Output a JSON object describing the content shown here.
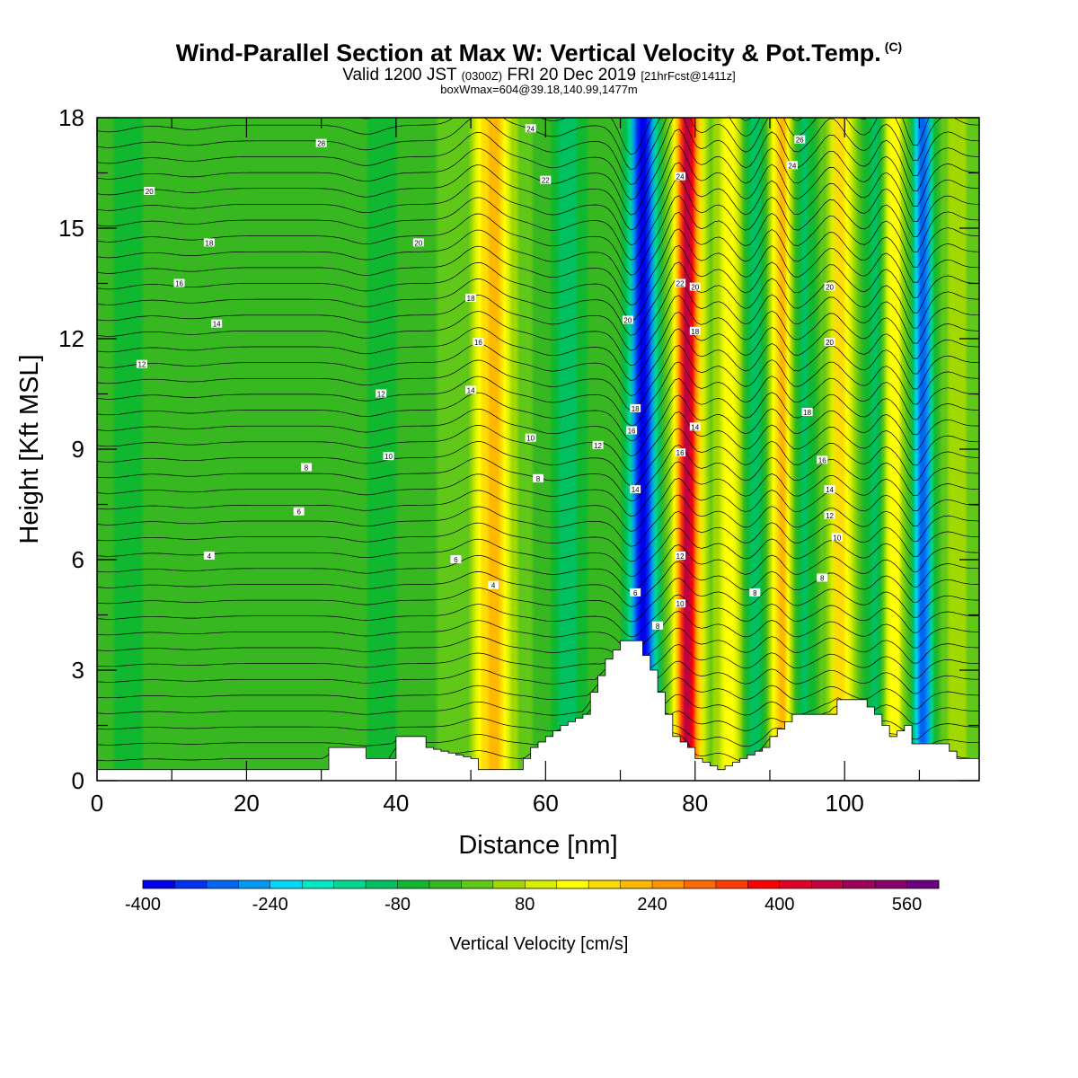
{
  "header": {
    "title": "Wind-Parallel Section at Max W: Vertical Velocity & Pot.Temp.",
    "copyright": "(C)",
    "valid_prefix": "Valid 1200 JST",
    "valid_utc": "(0300Z)",
    "valid_date": "FRI 20 Dec 2019",
    "forecast": "[21hrFcst@1411z]",
    "box_info": "boxWmax=604@39.18,140.99,1477m"
  },
  "chart_data": {
    "type": "heatmap",
    "xlabel": "Distance [nm]",
    "ylabel": "Height [Kft MSL]",
    "xlim": [
      0,
      118
    ],
    "ylim": [
      0,
      18
    ],
    "xticks": [
      "0",
      "20",
      "40",
      "60",
      "80",
      "100"
    ],
    "yticks": [
      "0",
      "3",
      "6",
      "9",
      "12",
      "15",
      "18"
    ],
    "field": "Vertical Velocity",
    "background_w": 0,
    "wave_bands": [
      {
        "x": 4,
        "w": -60,
        "width": 3
      },
      {
        "x": 15,
        "w": -40,
        "width": 3
      },
      {
        "x": 38,
        "w": -80,
        "width": 2.5
      },
      {
        "x": 53,
        "w": 220,
        "width": 2.5
      },
      {
        "x": 63,
        "w": -100,
        "width": 2.5
      },
      {
        "x": 73,
        "w": -390,
        "width": 1.8
      },
      {
        "x": 79,
        "w": 460,
        "width": 1.6
      },
      {
        "x": 84.5,
        "w": 150,
        "width": 1.7
      },
      {
        "x": 88,
        "w": -110,
        "width": 1.5
      },
      {
        "x": 91.5,
        "w": 230,
        "width": 1.5
      },
      {
        "x": 94.5,
        "w": -110,
        "width": 1.4
      },
      {
        "x": 99.5,
        "w": 200,
        "width": 1.6
      },
      {
        "x": 104,
        "w": -100,
        "width": 1.5
      },
      {
        "x": 106.5,
        "w": 160,
        "width": 1.4
      },
      {
        "x": 110.5,
        "w": -320,
        "width": 1.3
      },
      {
        "x": 115,
        "w": 80,
        "width": 1.5
      }
    ],
    "terrain": [
      {
        "x": 0,
        "h": 0.3
      },
      {
        "x": 30,
        "h": 0.3
      },
      {
        "x": 31,
        "h": 0.9
      },
      {
        "x": 35,
        "h": 0.9
      },
      {
        "x": 36,
        "h": 0.6
      },
      {
        "x": 39,
        "h": 0.6
      },
      {
        "x": 40,
        "h": 1.2
      },
      {
        "x": 43,
        "h": 1.2
      },
      {
        "x": 44,
        "h": 0.9
      },
      {
        "x": 50,
        "h": 0.6
      },
      {
        "x": 51,
        "h": 0.3
      },
      {
        "x": 56,
        "h": 0.3
      },
      {
        "x": 58,
        "h": 0.9
      },
      {
        "x": 62,
        "h": 1.5
      },
      {
        "x": 65,
        "h": 1.8
      },
      {
        "x": 66,
        "h": 2.4
      },
      {
        "x": 68,
        "h": 3.3
      },
      {
        "x": 70,
        "h": 3.8
      },
      {
        "x": 72,
        "h": 3.8
      },
      {
        "x": 74,
        "h": 3.0
      },
      {
        "x": 75,
        "h": 2.4
      },
      {
        "x": 76,
        "h": 1.8
      },
      {
        "x": 77,
        "h": 1.2
      },
      {
        "x": 79,
        "h": 0.9
      },
      {
        "x": 80,
        "h": 0.6
      },
      {
        "x": 83,
        "h": 0.3
      },
      {
        "x": 86,
        "h": 0.6
      },
      {
        "x": 89,
        "h": 0.9
      },
      {
        "x": 90,
        "h": 1.2
      },
      {
        "x": 93,
        "h": 1.8
      },
      {
        "x": 98,
        "h": 1.8
      },
      {
        "x": 99,
        "h": 2.2
      },
      {
        "x": 102,
        "h": 2.2
      },
      {
        "x": 104,
        "h": 1.8
      },
      {
        "x": 106,
        "h": 1.2
      },
      {
        "x": 108,
        "h": 1.5
      },
      {
        "x": 109,
        "h": 1.0
      },
      {
        "x": 113,
        "h": 1.0
      },
      {
        "x": 115,
        "h": 0.6
      },
      {
        "x": 118,
        "h": 0.6
      }
    ],
    "contour_labels": [
      {
        "x": 30,
        "y": 17.3,
        "text": "28"
      },
      {
        "x": 7,
        "y": 16.0,
        "text": "20"
      },
      {
        "x": 15,
        "y": 14.6,
        "text": "18"
      },
      {
        "x": 11,
        "y": 13.5,
        "text": "16"
      },
      {
        "x": 16,
        "y": 12.4,
        "text": "14"
      },
      {
        "x": 6,
        "y": 11.3,
        "text": "12"
      },
      {
        "x": 43,
        "y": 14.6,
        "text": "20"
      },
      {
        "x": 50,
        "y": 13.1,
        "text": "18"
      },
      {
        "x": 51,
        "y": 11.9,
        "text": "16"
      },
      {
        "x": 50,
        "y": 10.6,
        "text": "14"
      },
      {
        "x": 38,
        "y": 10.5,
        "text": "12"
      },
      {
        "x": 39,
        "y": 8.8,
        "text": "10"
      },
      {
        "x": 28,
        "y": 8.5,
        "text": "8"
      },
      {
        "x": 27,
        "y": 7.3,
        "text": "6"
      },
      {
        "x": 15,
        "y": 6.1,
        "text": "4"
      },
      {
        "x": 48,
        "y": 6.0,
        "text": "6"
      },
      {
        "x": 53,
        "y": 5.3,
        "text": "4"
      },
      {
        "x": 58,
        "y": 17.7,
        "text": "24"
      },
      {
        "x": 60,
        "y": 16.3,
        "text": "22"
      },
      {
        "x": 58,
        "y": 9.3,
        "text": "10"
      },
      {
        "x": 59,
        "y": 8.2,
        "text": "8"
      },
      {
        "x": 67,
        "y": 9.1,
        "text": "12"
      },
      {
        "x": 71,
        "y": 12.5,
        "text": "20"
      },
      {
        "x": 72,
        "y": 10.1,
        "text": "18"
      },
      {
        "x": 71.5,
        "y": 9.5,
        "text": "16"
      },
      {
        "x": 72,
        "y": 7.9,
        "text": "14"
      },
      {
        "x": 72,
        "y": 5.1,
        "text": "6"
      },
      {
        "x": 75,
        "y": 4.2,
        "text": "8"
      },
      {
        "x": 78,
        "y": 16.4,
        "text": "24"
      },
      {
        "x": 78,
        "y": 13.5,
        "text": "22"
      },
      {
        "x": 80,
        "y": 13.4,
        "text": "20"
      },
      {
        "x": 80,
        "y": 12.2,
        "text": "18"
      },
      {
        "x": 80,
        "y": 9.6,
        "text": "14"
      },
      {
        "x": 78,
        "y": 8.9,
        "text": "16"
      },
      {
        "x": 78,
        "y": 6.1,
        "text": "12"
      },
      {
        "x": 78,
        "y": 4.8,
        "text": "10"
      },
      {
        "x": 94,
        "y": 17.4,
        "text": "26"
      },
      {
        "x": 93,
        "y": 16.7,
        "text": "24"
      },
      {
        "x": 98,
        "y": 13.4,
        "text": "20"
      },
      {
        "x": 98,
        "y": 11.9,
        "text": "20"
      },
      {
        "x": 95,
        "y": 10.0,
        "text": "18"
      },
      {
        "x": 97,
        "y": 8.7,
        "text": "16"
      },
      {
        "x": 98,
        "y": 7.9,
        "text": "14"
      },
      {
        "x": 98,
        "y": 7.2,
        "text": "12"
      },
      {
        "x": 99,
        "y": 6.6,
        "text": "10"
      },
      {
        "x": 97,
        "y": 5.5,
        "text": "8"
      },
      {
        "x": 88,
        "y": 5.1,
        "text": "8"
      }
    ]
  },
  "colorbar": {
    "label": "Vertical Velocity [cm/s]",
    "min": -400,
    "step": 40,
    "tick_labels": [
      "-400",
      "-240",
      "-80",
      "80",
      "240",
      "400",
      "560"
    ],
    "colors": [
      "#0000ee",
      "#0033f0",
      "#0066f2",
      "#0099f4",
      "#00d8f8",
      "#00e8c8",
      "#00d890",
      "#00c060",
      "#10b830",
      "#38b820",
      "#60c818",
      "#a0d800",
      "#d8f000",
      "#ffff00",
      "#ffdc00",
      "#ffb800",
      "#ff9400",
      "#ff6a00",
      "#ff3c00",
      "#ff0000",
      "#e00028",
      "#c00040",
      "#a00058",
      "#88006a",
      "#6a0080"
    ]
  }
}
